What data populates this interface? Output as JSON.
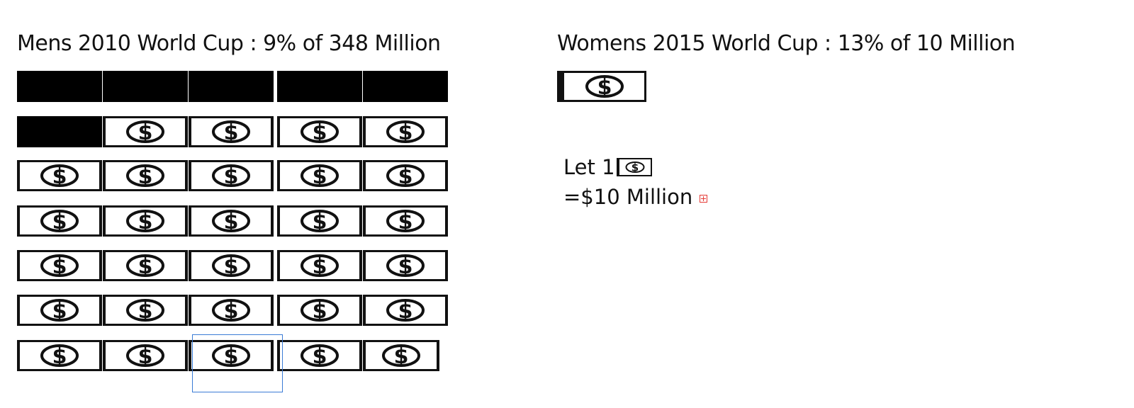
{
  "mens": {
    "title": "Mens 2010 World Cup : 9% of 348 Million",
    "grid": [
      [
        "solid",
        "solid",
        "solid",
        "solid",
        "solid"
      ],
      [
        "solid",
        "bill",
        "bill",
        "bill",
        "bill"
      ],
      [
        "bill",
        "bill",
        "bill",
        "bill",
        "bill"
      ],
      [
        "bill",
        "bill",
        "bill",
        "bill",
        "bill"
      ],
      [
        "bill",
        "bill",
        "bill",
        "bill",
        "bill"
      ],
      [
        "bill",
        "bill",
        "bill",
        "bill",
        "bill"
      ],
      [
        "bill",
        "bill",
        "bill",
        "bill",
        "bill"
      ]
    ],
    "selected_cell": {
      "row": 6,
      "col": 2
    }
  },
  "womens": {
    "title": "Womens 2015 World Cup : 13% of 10 Million",
    "bill_icon": "dollar-bill-icon"
  },
  "legend": {
    "line1_prefix": "Let 1",
    "line2": "=$10 Million",
    "icon": "dollar-bill-icon",
    "expand_icon": "expand-icon"
  },
  "colors": {
    "ink": "#111111",
    "selection": "#3a7bd5",
    "marker": "#e53935"
  }
}
